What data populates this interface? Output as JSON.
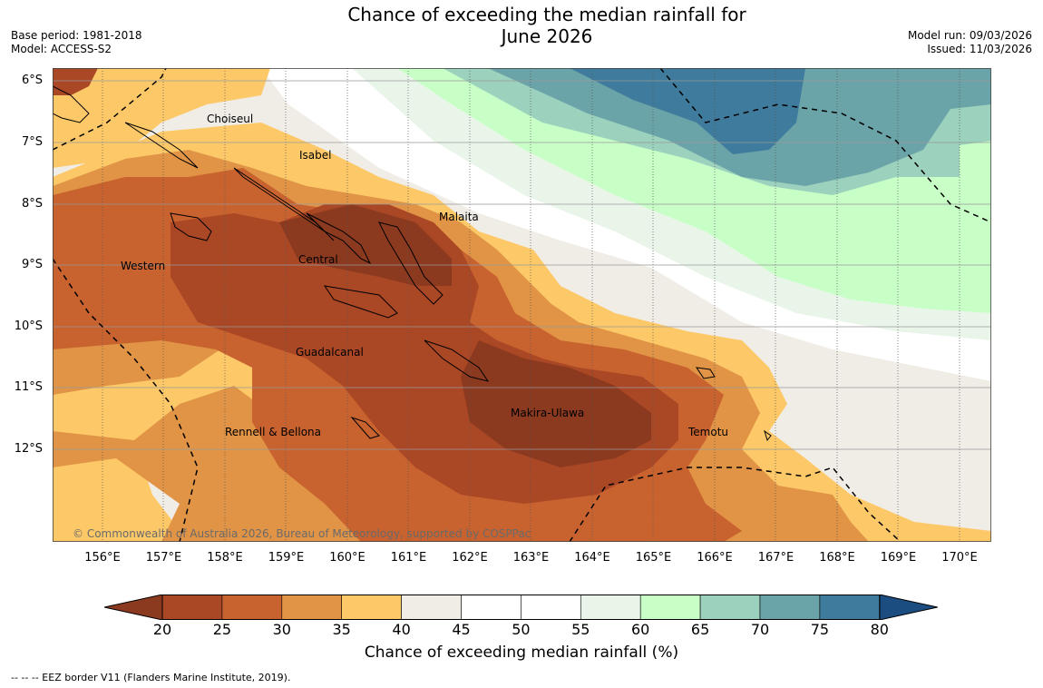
{
  "title": {
    "line1": "Chance of exceeding the median rainfall for",
    "line2": "June 2026"
  },
  "model": {
    "base_period": "Base period: 1981-2018",
    "model": "Model: ACCESS-S2",
    "model_run": "Model run: 09/03/2026",
    "issued": "Issued: 11/03/2026"
  },
  "map": {
    "lat_labels": [
      "6°S",
      "7°S",
      "8°S",
      "9°S",
      "10°S",
      "11°S",
      "12°S"
    ],
    "lon_labels": [
      "156°E",
      "157°E",
      "158°E",
      "159°E",
      "160°E",
      "161°E",
      "162°E",
      "163°E",
      "164°E",
      "165°E",
      "166°E",
      "167°E",
      "168°E",
      "169°E",
      "170°E"
    ],
    "regions": {
      "choiseul": "Choiseul",
      "isabel": "Isabel",
      "malaita": "Malaita",
      "western": "Western",
      "central": "Central",
      "guadalcanal": "Guadalcanal",
      "makira": "Makira-Ulawa",
      "rennell": "Rennell & Bellona",
      "temotu": "Temotu"
    },
    "copyright": "© Commonwealth of Australia 2026, Bureau of Meteorology, supported by COSPPac"
  },
  "colorbar": {
    "ticks": [
      "20",
      "25",
      "30",
      "35",
      "40",
      "45",
      "50",
      "55",
      "60",
      "65",
      "70",
      "75",
      "80"
    ],
    "colors": [
      "#8b3a1f",
      "#aa4725",
      "#c8622f",
      "#e19446",
      "#fdc968",
      "#f0ece6",
      "#ffffff",
      "#ffffff",
      "#eaf5ea",
      "#c7ffc7",
      "#9bd1bd",
      "#6aa3a8",
      "#3f7b9c",
      "#1b4d80"
    ],
    "label": "Chance of exceeding median rainfall (%)"
  },
  "footnote": "--  --  -- EEZ border V11 (Flanders Marine Institute, 2019)."
}
